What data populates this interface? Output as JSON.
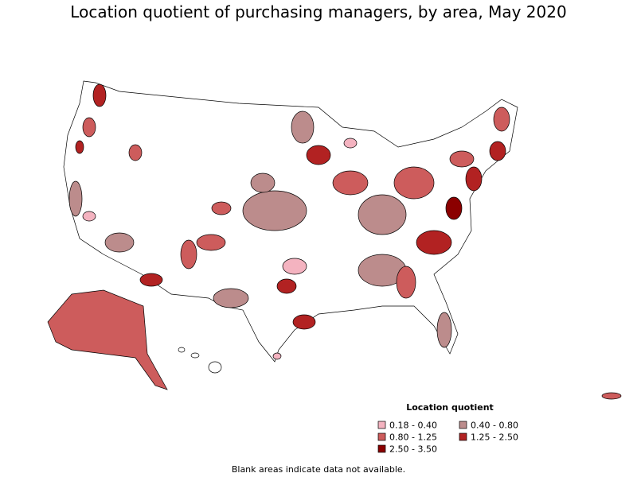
{
  "title": "Location quotient of purchasing managers, by area, May 2020",
  "legend": {
    "title": "Location quotient",
    "items": [
      {
        "label": "0.18 - 0.40",
        "color": "#f4b3c0"
      },
      {
        "label": "0.40 - 0.80",
        "color": "#bc8c8c"
      },
      {
        "label": "0.80 - 1.25",
        "color": "#cd5c5c"
      },
      {
        "label": "1.25 - 2.50",
        "color": "#b22222"
      },
      {
        "label": "2.50 - 3.50",
        "color": "#8b0000"
      }
    ]
  },
  "note": "Blank areas indicate data not available."
}
